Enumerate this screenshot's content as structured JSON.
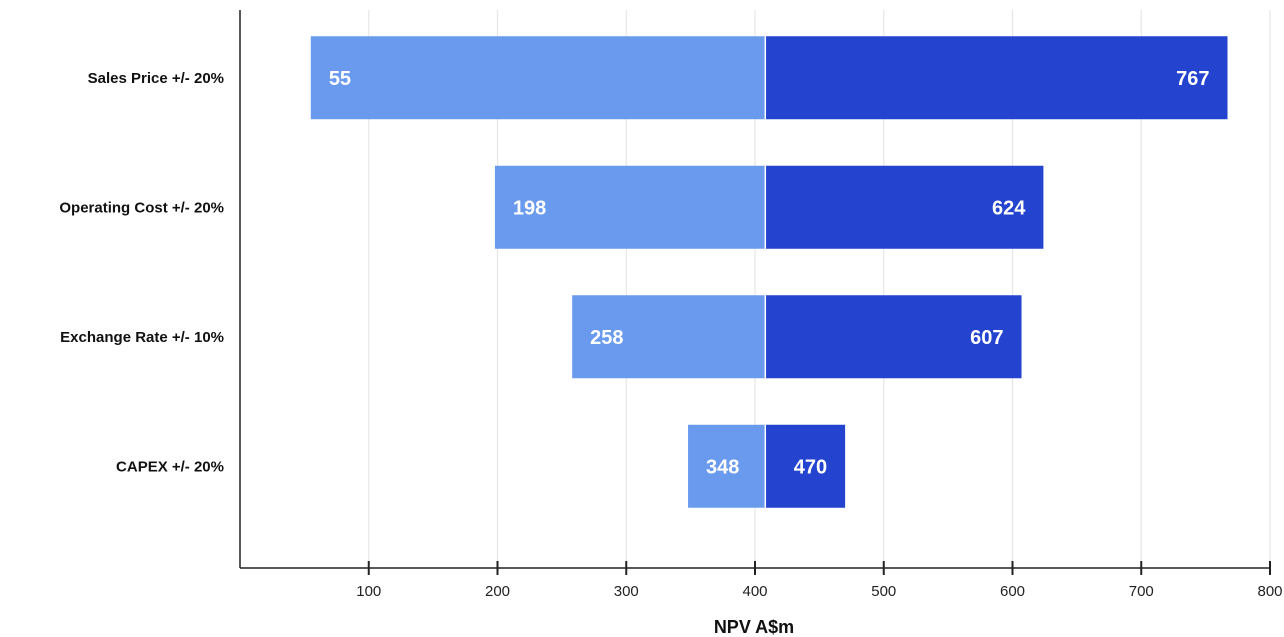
{
  "chart_data": {
    "type": "bar",
    "orientation": "horizontal",
    "variant": "tornado",
    "base_value": 408,
    "categories": [
      "Sales Price +/- 20%",
      "Operating Cost +/- 20%",
      "Exchange Rate +/- 10%",
      "CAPEX +/- 20%"
    ],
    "series": [
      {
        "values": [
          55,
          198,
          258,
          348
        ],
        "color": "#6a9aed"
      },
      {
        "values": [
          767,
          624,
          607,
          470
        ],
        "color": "#2443cf"
      }
    ],
    "xlabel": "NPV A$m",
    "xlim": [
      0,
      800
    ],
    "xticks": [
      100,
      200,
      300,
      400,
      500,
      600,
      700,
      800
    ],
    "grid": "vertical",
    "legend": "none"
  }
}
